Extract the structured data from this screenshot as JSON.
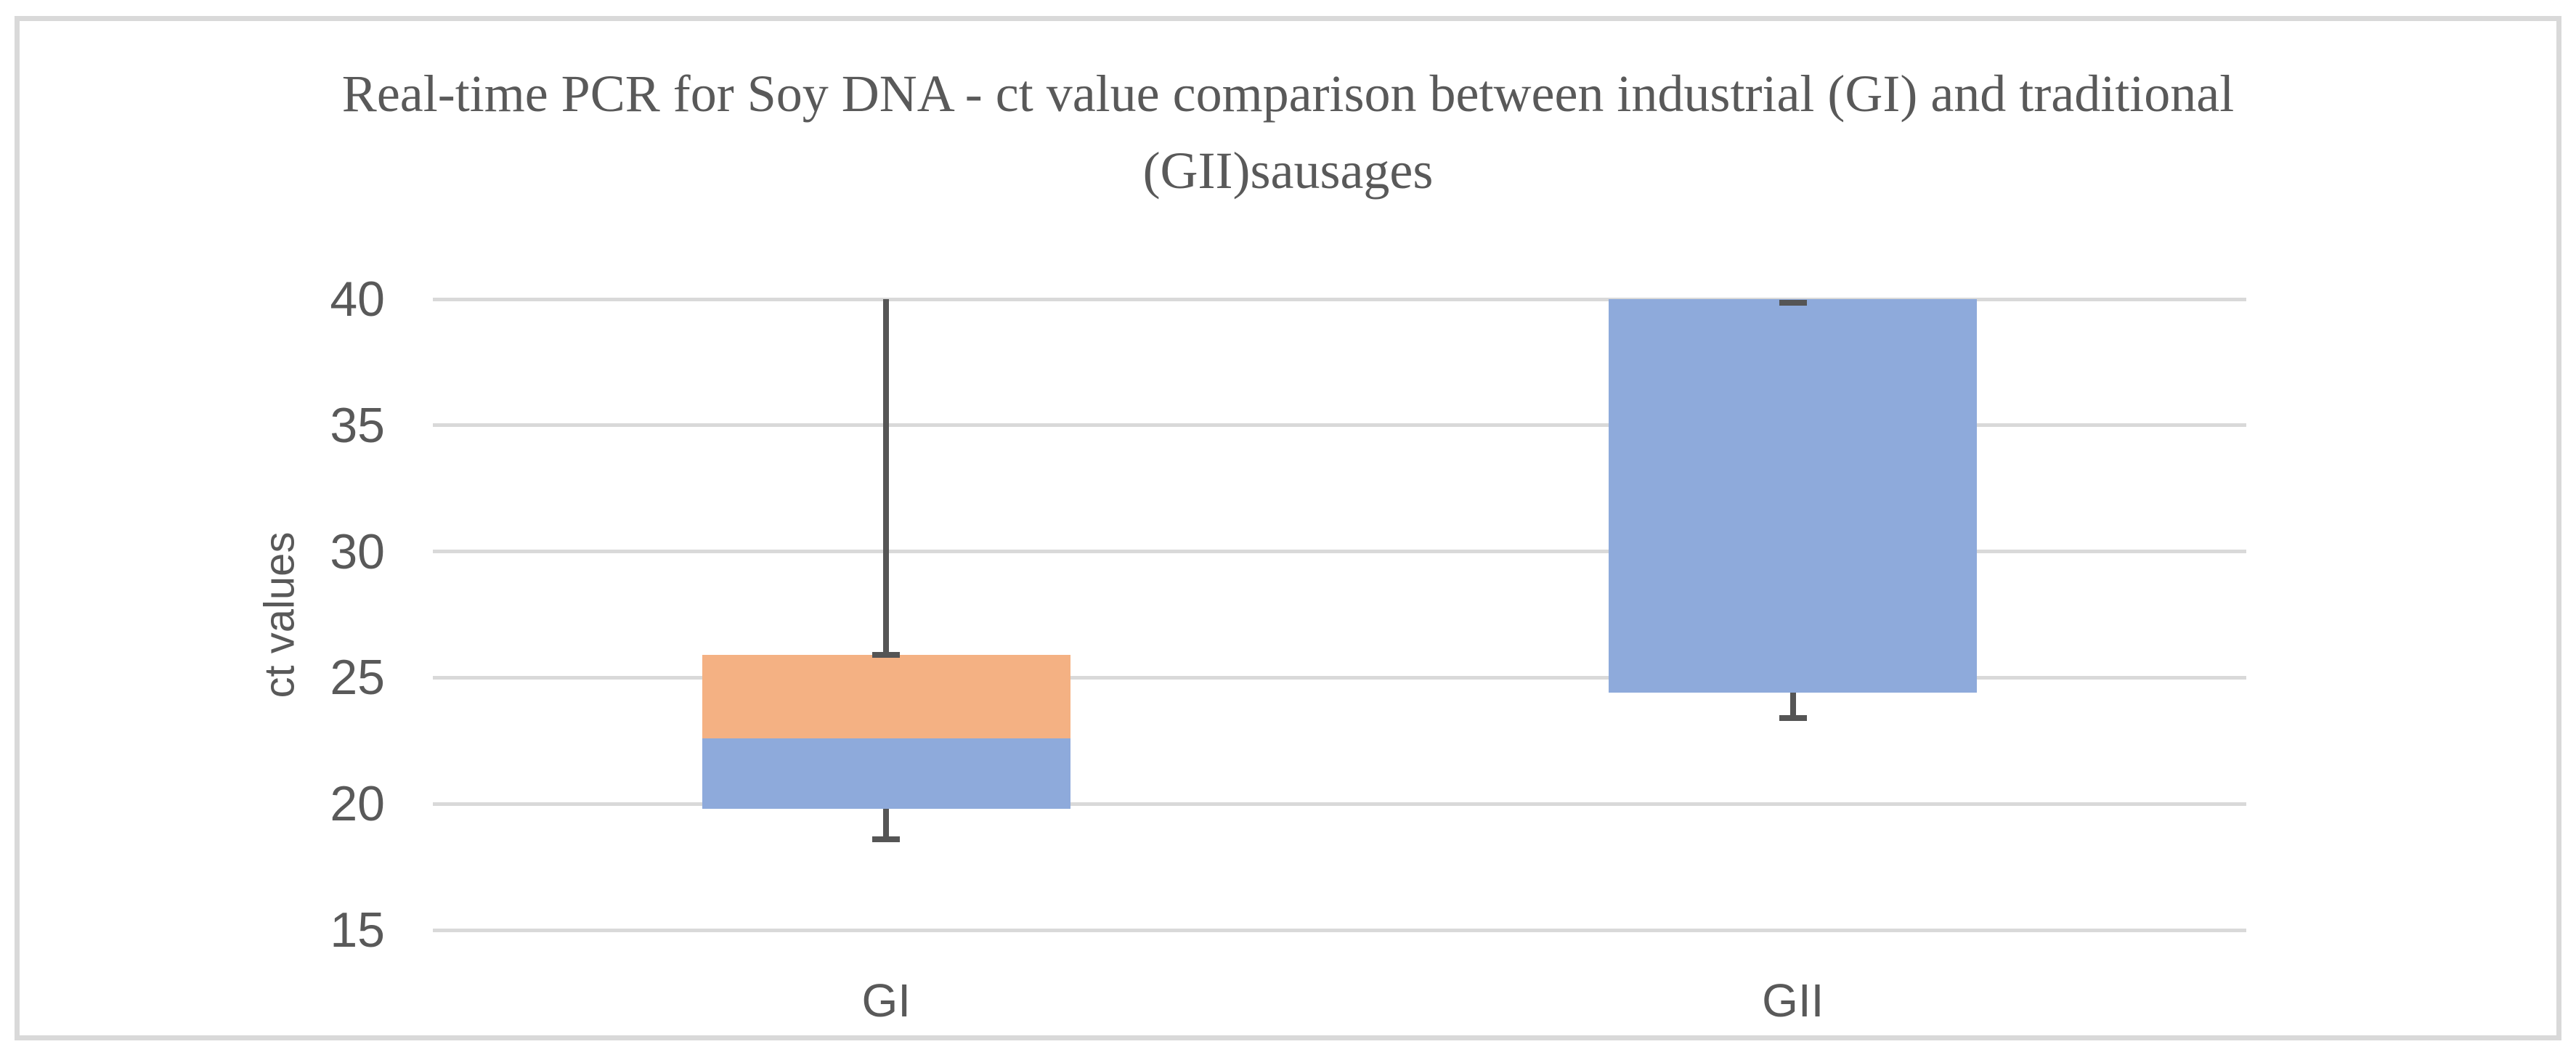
{
  "figure": {
    "background": "#FFFFFF",
    "border_color": "#D9D9D9"
  },
  "chart_data": {
    "type": "box",
    "title": "Real-time PCR for Soy DNA - ct value comparison between industrial (GI) and traditional (GII)sausages",
    "title_lines": [
      "Real-time PCR for Soy DNA - ct value comparison between industrial (GI) and traditional",
      "(GII)sausages"
    ],
    "xlabel": "",
    "ylabel": "ct values",
    "ylim": [
      15,
      40
    ],
    "yticks": [
      15,
      20,
      25,
      30,
      35,
      40
    ],
    "grid": "horizontal",
    "legend": "none",
    "categories": [
      "GI",
      "GII"
    ],
    "boxes": [
      {
        "category": "GI",
        "min": 18.6,
        "q1": 19.8,
        "median": 22.6,
        "q3": 25.9,
        "max": 40
      },
      {
        "category": "GII",
        "min": 23.4,
        "q1": 24.4,
        "median": 40,
        "q3": 40,
        "max": 40
      }
    ],
    "colors": {
      "box_lower_segment": "#8EAADB",
      "box_upper_segment": "#F4B183",
      "whisker": "#555555",
      "gridline": "#D9D9D9",
      "text": "#595959",
      "border": "#D9D9D9"
    }
  }
}
